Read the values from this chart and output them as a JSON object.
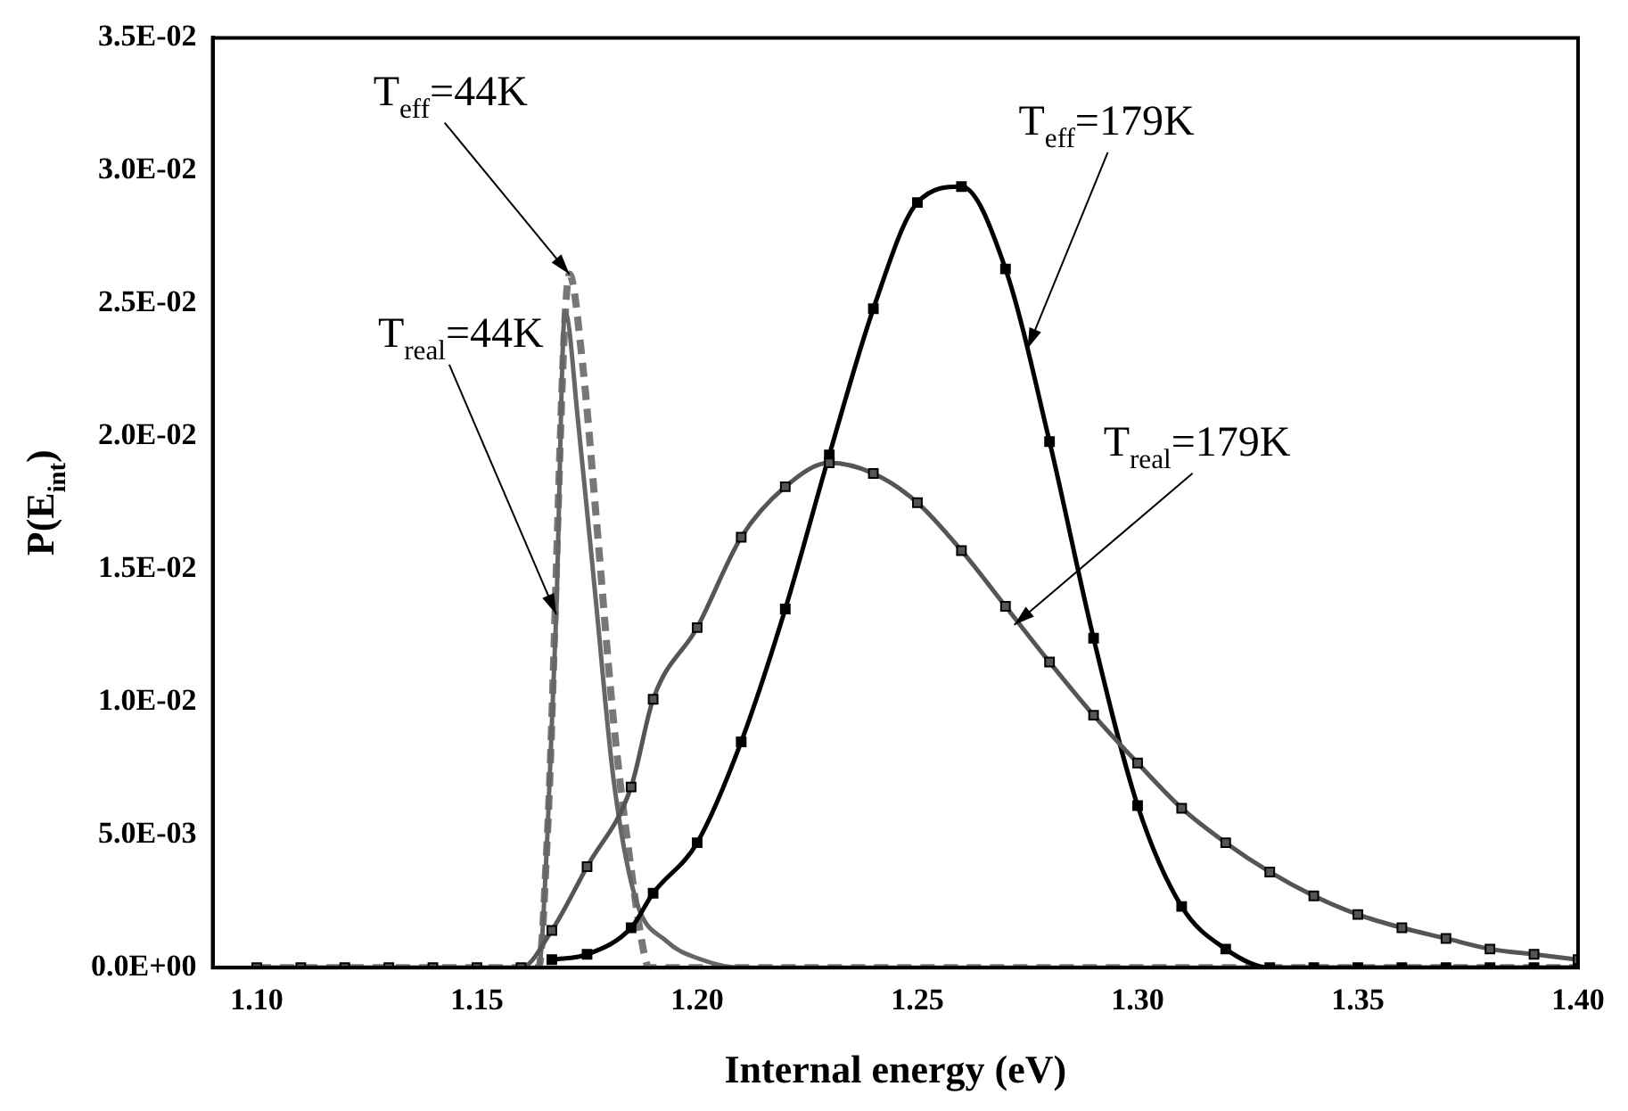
{
  "chart_data": {
    "type": "line",
    "xlabel": "Internal energy (eV)",
    "ylabel": "P(E$_{int}$)",
    "xlim": [
      1.09,
      1.4
    ],
    "xticks": [
      {
        "value": 1.1,
        "label": "1.10"
      },
      {
        "value": 1.15,
        "label": "1.15"
      },
      {
        "value": 1.2,
        "label": "1.20"
      },
      {
        "value": 1.25,
        "label": "1.25"
      },
      {
        "value": 1.3,
        "label": "1.30"
      },
      {
        "value": 1.35,
        "label": "1.35"
      },
      {
        "value": 1.4,
        "label": "1.40"
      }
    ],
    "ylim": [
      0,
      0.035
    ],
    "yticks": [
      {
        "value": 0,
        "label": "0.0E+00"
      },
      {
        "value": 0.005,
        "label": "5.0E-03"
      },
      {
        "value": 0.01,
        "label": "1.0E-02"
      },
      {
        "value": 0.015,
        "label": "1.5E-02"
      },
      {
        "value": 0.02,
        "label": "2.0E-02"
      },
      {
        "value": 0.025,
        "label": "2.5E-02"
      },
      {
        "value": 0.03,
        "label": "3.0E-02"
      },
      {
        "value": 0.035,
        "label": "3.5E-02"
      }
    ],
    "grid": false,
    "legend": false,
    "series": [
      {
        "color": "#555555",
        "marker": "square",
        "line_style": "solid",
        "x": [
          1.1,
          1.11,
          1.12,
          1.13,
          1.14,
          1.15,
          1.16,
          1.167,
          1.175,
          1.185,
          1.19,
          1.2,
          1.21,
          1.22,
          1.23,
          1.24,
          1.25,
          1.26,
          1.27,
          1.28,
          1.29,
          1.3,
          1.31,
          1.32,
          1.33,
          1.34,
          1.35,
          1.36,
          1.37,
          1.38,
          1.39,
          1.4
        ],
        "values": [
          0,
          0,
          0,
          0,
          0,
          0,
          0,
          0.0014,
          0.0038,
          0.0068,
          0.0101,
          0.0128,
          0.0162,
          0.0181,
          0.019,
          0.0186,
          0.0175,
          0.0157,
          0.0136,
          0.0115,
          0.0095,
          0.0077,
          0.006,
          0.0047,
          0.0036,
          0.0027,
          0.002,
          0.0015,
          0.0011,
          0.0007,
          0.0005,
          0.0003
        ]
      },
      {
        "color": "#000000",
        "marker": "square",
        "line_style": "solid",
        "x": [
          1.167,
          1.175,
          1.185,
          1.19,
          1.2,
          1.21,
          1.22,
          1.23,
          1.24,
          1.25,
          1.26,
          1.27,
          1.28,
          1.29,
          1.3,
          1.31,
          1.32,
          1.33,
          1.34,
          1.35,
          1.36,
          1.37,
          1.38,
          1.39,
          1.4
        ],
        "values": [
          0.0003,
          0.0005,
          0.0015,
          0.0028,
          0.0047,
          0.0085,
          0.0135,
          0.0193,
          0.0248,
          0.0288,
          0.0294,
          0.0263,
          0.0198,
          0.0124,
          0.0061,
          0.0023,
          0.0007,
          0,
          0,
          0,
          0,
          0,
          0,
          0,
          0
        ]
      },
      {
        "color": "#666666",
        "marker": "none",
        "line_style": "solid",
        "x": [
          1.1,
          1.164,
          1.166,
          1.168,
          1.17,
          1.173,
          1.177,
          1.181,
          1.186,
          1.193,
          1.201,
          1.21,
          1.4
        ],
        "values": [
          0,
          0,
          0.005,
          0.0133,
          0.0247,
          0.0205,
          0.0138,
          0.0071,
          0.0026,
          0.001,
          0.0003,
          0,
          0
        ]
      },
      {
        "color": "#777777",
        "marker": "none",
        "line_style": "dashed",
        "x": [
          1.1,
          1.164,
          1.166,
          1.171,
          1.174,
          1.177,
          1.181,
          1.185,
          1.188,
          1.189,
          1.4
        ],
        "values": [
          0,
          0,
          0.005,
          0.0261,
          0.0227,
          0.0171,
          0.0093,
          0.0037,
          0.0005,
          0,
          0
        ]
      }
    ],
    "annotations": [
      {
        "text": "T$_{eff}$=44K",
        "x": 1.171,
        "y": 0.0261
      },
      {
        "text": "T$_{real}$=44K",
        "x": 1.168,
        "y": 0.0133
      },
      {
        "text": "T$_{eff}$=179K",
        "x": 1.275,
        "y": 0.0233
      },
      {
        "text": "T$_{real}$=179K",
        "x": 1.272,
        "y": 0.0129
      }
    ]
  }
}
